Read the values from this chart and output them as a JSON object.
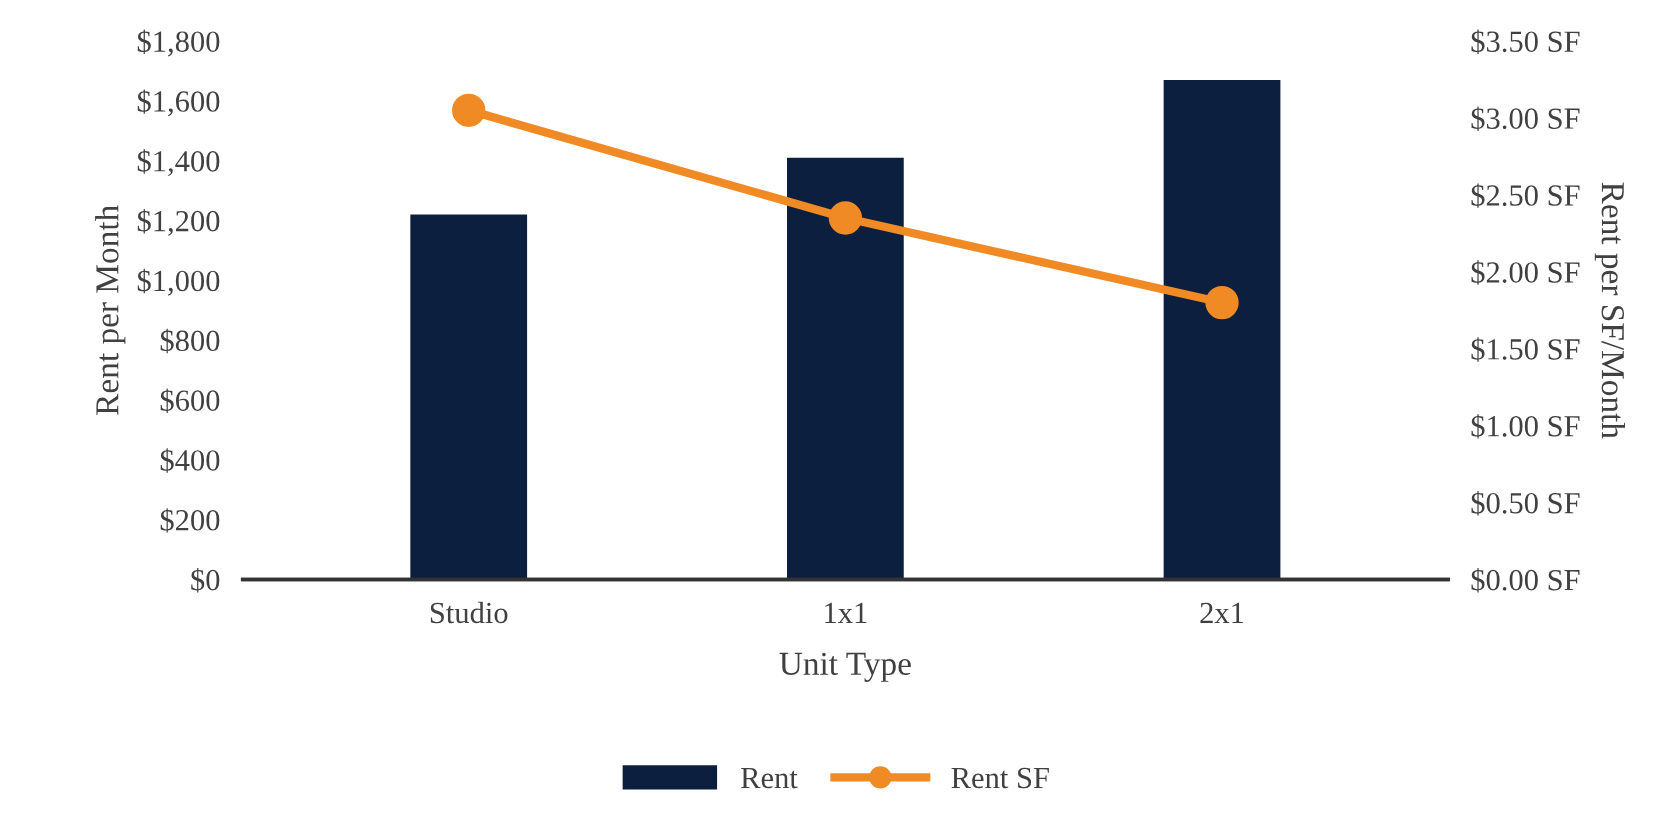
{
  "chart_data": {
    "type": "bar",
    "xlabel": "Unit Type",
    "ylabel": "Rent per Month",
    "y2label": "Rent per SF/Month",
    "categories": [
      "Studio",
      "1x1",
      "2x1"
    ],
    "series": [
      {
        "name": "Rent",
        "color": "#0c1f3f",
        "values": [
          1220,
          1410,
          1670
        ]
      },
      {
        "name": "Rent SF",
        "type": "line",
        "axis": "y2",
        "color": "#f08a24",
        "marker": "circle",
        "values": [
          3.05,
          2.35,
          1.8
        ]
      }
    ],
    "ylim": [
      0,
      1800
    ],
    "yticks": [
      {
        "value": 0,
        "label": "$0"
      },
      {
        "value": 200,
        "label": "$200"
      },
      {
        "value": 400,
        "label": "$400"
      },
      {
        "value": 600,
        "label": "$600"
      },
      {
        "value": 800,
        "label": "$800"
      },
      {
        "value": 1000,
        "label": "$1,000"
      },
      {
        "value": 1200,
        "label": "$1,200"
      },
      {
        "value": 1400,
        "label": "$1,400"
      },
      {
        "value": 1600,
        "label": "$1,600"
      },
      {
        "value": 1800,
        "label": "$1,800"
      }
    ],
    "y2lim": [
      0,
      3.5
    ],
    "y2ticks": [
      {
        "value": 0,
        "label": "$0.00 SF"
      },
      {
        "value": 0.5,
        "label": "$0.50 SF"
      },
      {
        "value": 1,
        "label": "$1.00 SF"
      },
      {
        "value": 1.5,
        "label": "$1.50 SF"
      },
      {
        "value": 2,
        "label": "$2.00 SF"
      },
      {
        "value": 2.5,
        "label": "$2.50 SF"
      },
      {
        "value": 3,
        "label": "$3.00 SF"
      },
      {
        "value": 3.5,
        "label": "$3.50 SF"
      }
    ],
    "grid": false,
    "legend": "bottom"
  }
}
